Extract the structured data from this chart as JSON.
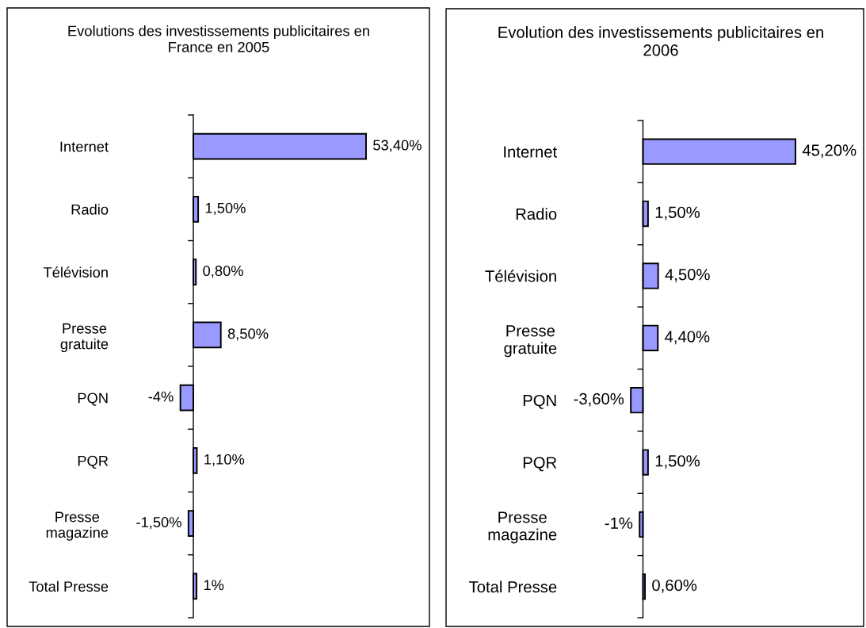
{
  "chart_data": [
    {
      "type": "bar",
      "orientation": "horizontal",
      "title": "Evolutions des investissements publicitaires en\nFrance en 2005",
      "categories": [
        "Internet",
        "Radio",
        "Télévision",
        "Presse\ngratuite",
        "PQN",
        "PQR",
        "Presse\nmagazine",
        "Total Presse"
      ],
      "values": [
        53.4,
        1.5,
        0.8,
        8.5,
        -4,
        1.1,
        -1.5,
        1
      ],
      "value_labels": [
        "53,40%",
        "1,50%",
        "0,80%",
        "8,50%",
        "-4%",
        "1,10%",
        "-1,50%",
        "1%"
      ],
      "color": "#9999ff",
      "tick_labels": "y"
    },
    {
      "type": "bar",
      "orientation": "horizontal",
      "title": "Evolution des investissements publicitaires en\n2006",
      "categories": [
        "Internet",
        "Radio",
        "Télévision",
        "Presse\ngratuite",
        "PQN",
        "PQR",
        "Presse\nmagazine",
        "Total Presse"
      ],
      "values": [
        45.2,
        1.5,
        4.5,
        4.4,
        -3.6,
        1.5,
        -1,
        0.6
      ],
      "value_labels": [
        "45,20%",
        "1,50%",
        "4,50%",
        "4,40%",
        "-3,60%",
        "1,50%",
        "-1%",
        "0,60%"
      ],
      "color": "#9999ff",
      "tick_labels": "y"
    }
  ]
}
